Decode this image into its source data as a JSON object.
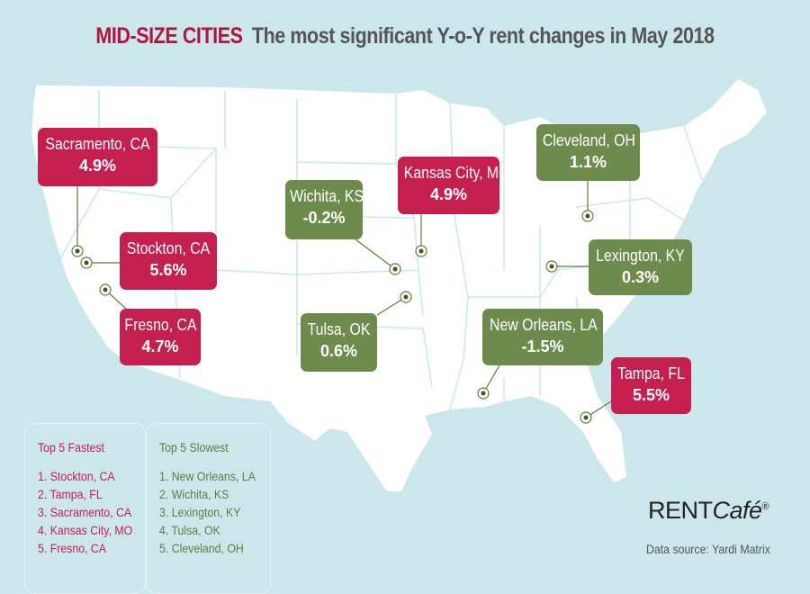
{
  "title": {
    "category": "MID-SIZE CITIES",
    "subtitle": "The most significant Y-o-Y rent changes in May 2018"
  },
  "colors": {
    "fastest": "#c41f4f",
    "slowest": "#6e8b4e",
    "background": "#cbe7ec",
    "land": "#ffffff"
  },
  "callouts": [
    {
      "city": "Sacramento, CA",
      "value": "4.9%",
      "group": "fastest"
    },
    {
      "city": "Stockton, CA",
      "value": "5.6%",
      "group": "fastest"
    },
    {
      "city": "Fresno, CA",
      "value": "4.7%",
      "group": "fastest"
    },
    {
      "city": "Wichita, KS",
      "value": "-0.2%",
      "group": "slowest"
    },
    {
      "city": "Kansas City, MO",
      "value": "4.9%",
      "group": "fastest"
    },
    {
      "city": "Cleveland, OH",
      "value": "1.1%",
      "group": "slowest"
    },
    {
      "city": "Lexington, KY",
      "value": "0.3%",
      "group": "slowest"
    },
    {
      "city": "Tulsa, OK",
      "value": "0.6%",
      "group": "slowest"
    },
    {
      "city": "New Orleans, LA",
      "value": "-1.5%",
      "group": "slowest"
    },
    {
      "city": "Tampa, FL",
      "value": "5.5%",
      "group": "fastest"
    }
  ],
  "legend": {
    "fastest": {
      "heading": "Top 5 Fastest",
      "items": [
        "1. Stockton, CA",
        "2. Tampa, FL",
        "3. Sacramento, CA",
        "4. Kansas City, MO",
        "5. Fresno, CA"
      ]
    },
    "slowest": {
      "heading": "Top 5 Slowest",
      "items": [
        "1. New Orleans, LA",
        "2. Wichita, KS",
        "3. Lexington, KY",
        "4. Tulsa, OK",
        "5. Cleveland, OH"
      ]
    }
  },
  "brand": {
    "logo_text": "RENTCafé®"
  },
  "source": "Data source:  Yardi Matrix"
}
